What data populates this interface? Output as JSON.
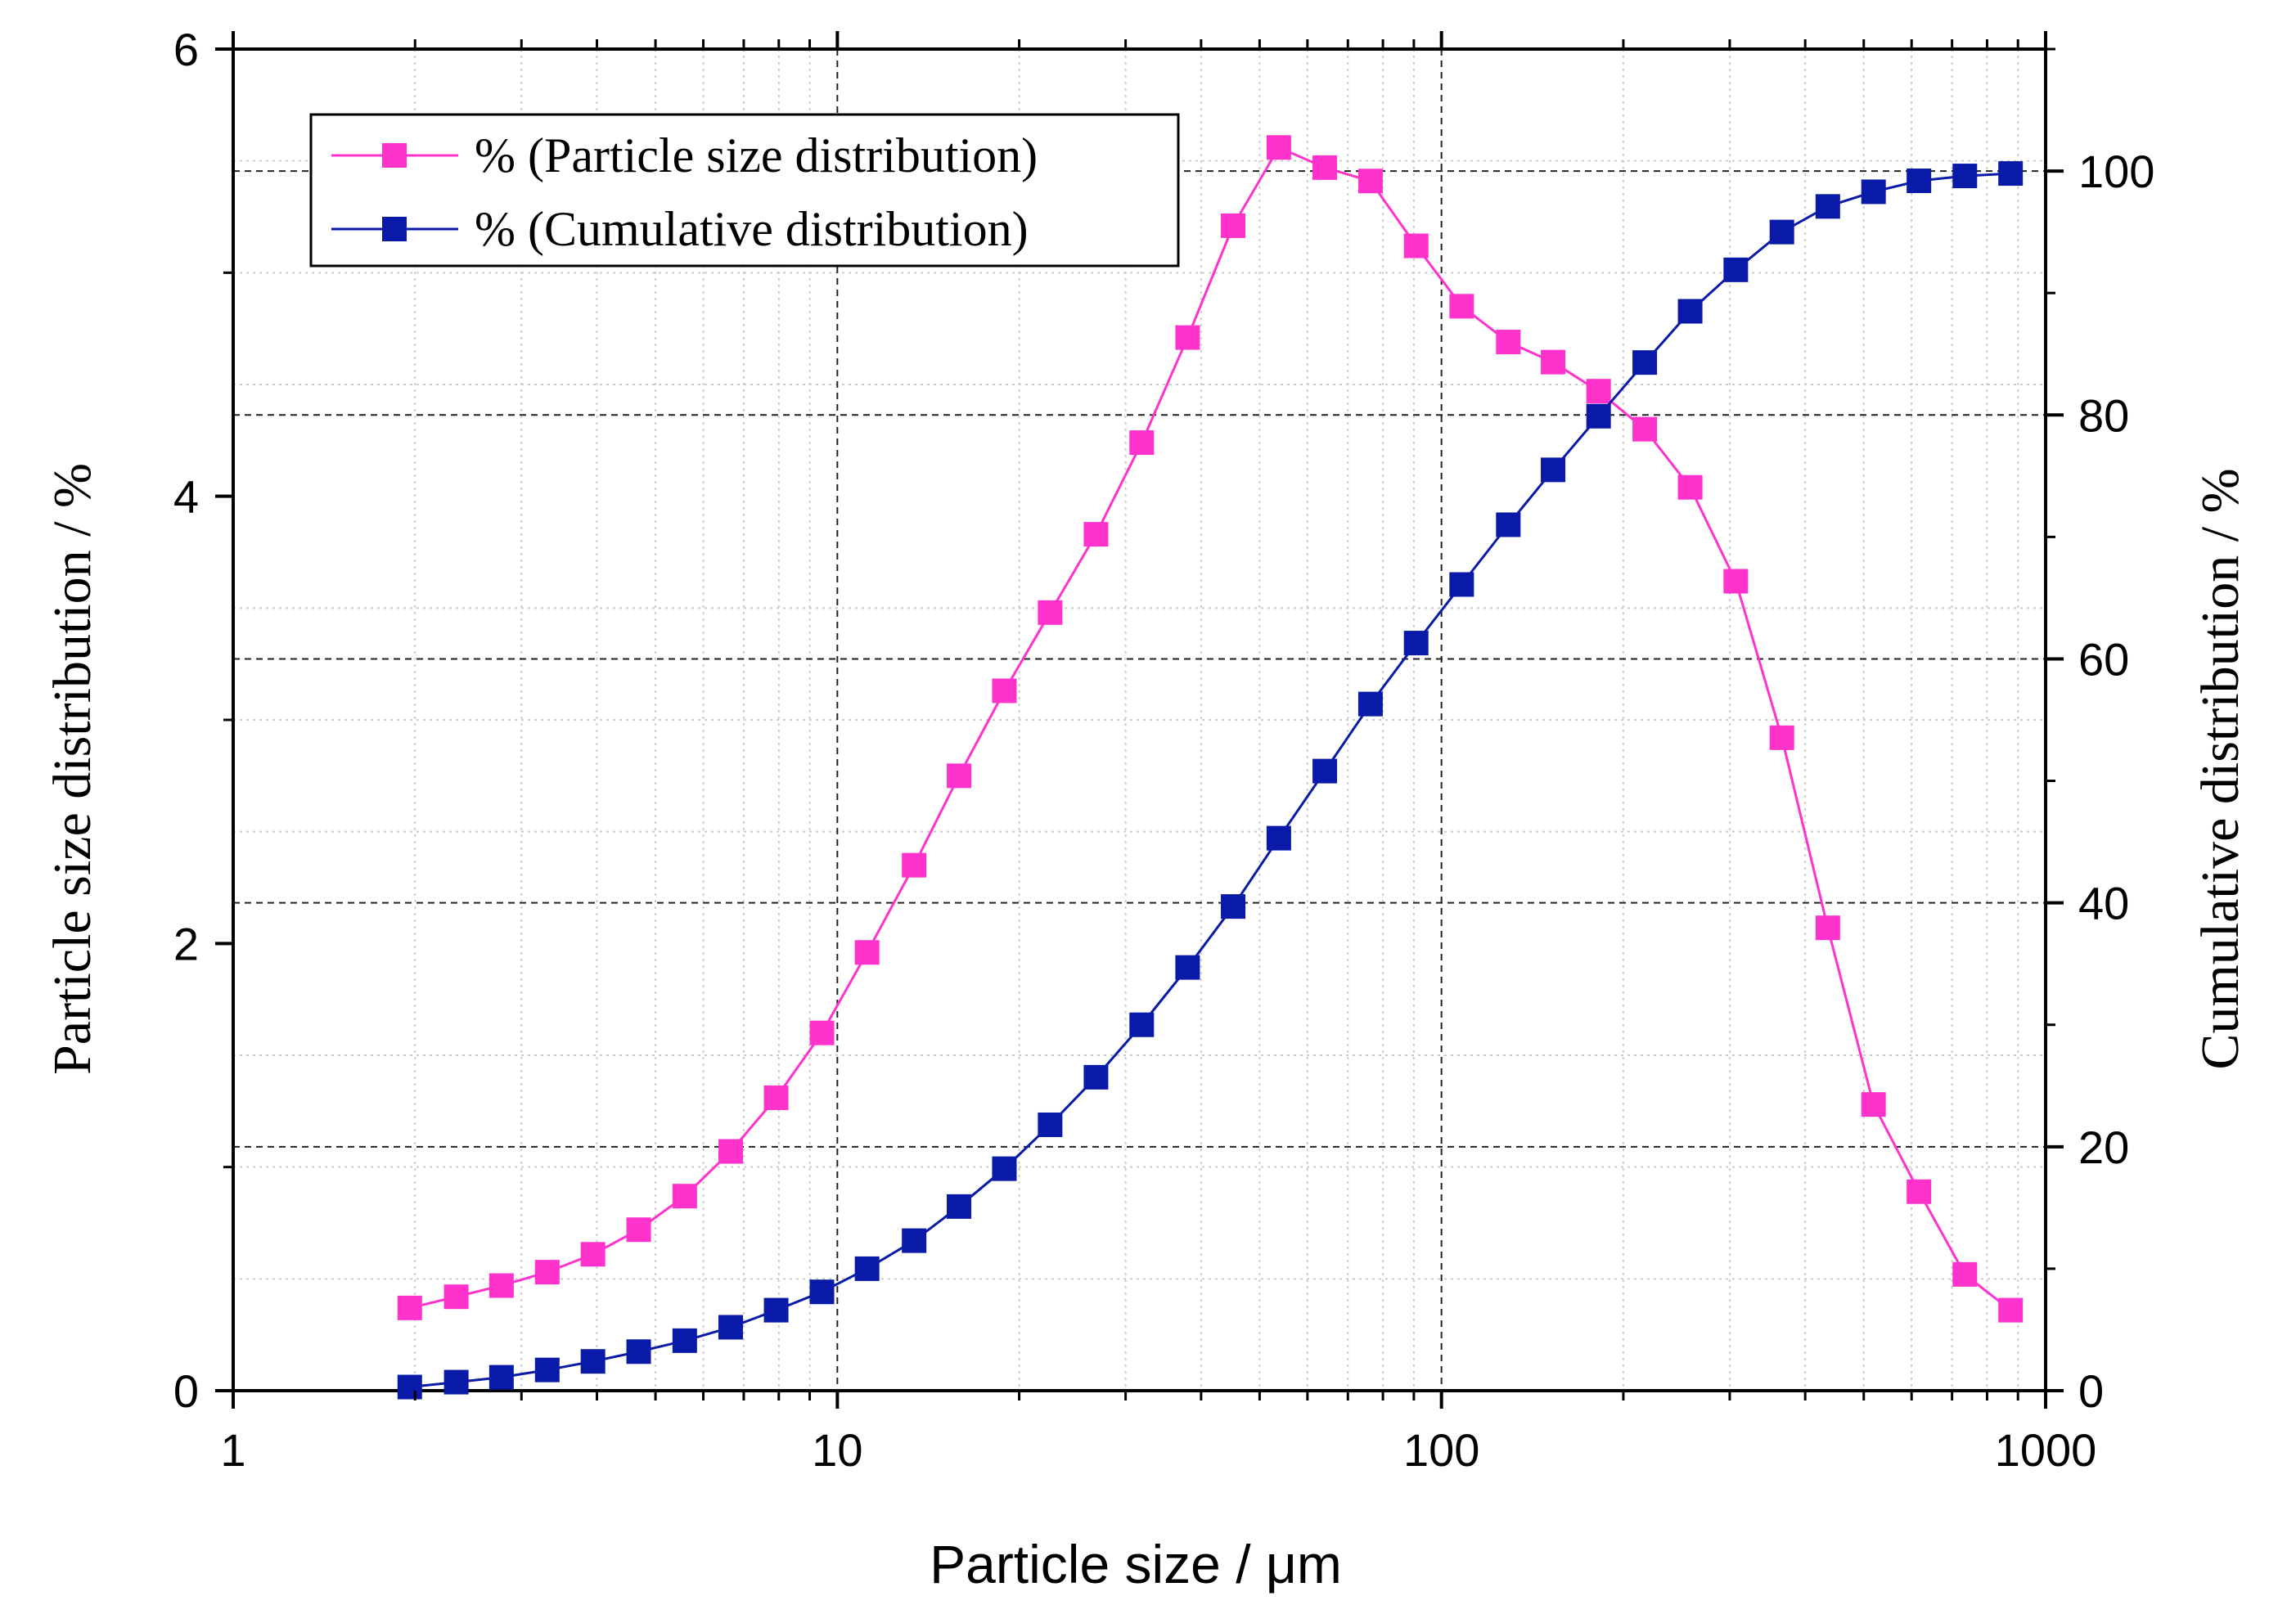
{
  "chart_data": {
    "type": "line",
    "x_scale": "log",
    "xlabel": "Particle size / μm",
    "ylabel_left": "Particle size distribution / %",
    "ylabel_right": "Cumulative distribution / %",
    "xlim": [
      1,
      1000
    ],
    "ylim_left": [
      0,
      6
    ],
    "ylim_right": [
      0,
      110
    ],
    "x_ticks": [
      1,
      10,
      100,
      1000
    ],
    "x_tick_labels": [
      "1",
      "10",
      "100",
      "1000"
    ],
    "y_left_ticks": [
      0,
      2,
      4,
      6
    ],
    "y_left_tick_labels": [
      "0",
      "2",
      "4",
      "6"
    ],
    "y_right_ticks": [
      0,
      20,
      40,
      60,
      80,
      100
    ],
    "y_right_tick_labels": [
      "0",
      "20",
      "40",
      "60",
      "80",
      "100"
    ],
    "grid": true,
    "legend_position": "top-left",
    "x": [
      1.96,
      2.34,
      2.78,
      3.31,
      3.94,
      4.69,
      5.59,
      6.66,
      7.92,
      9.43,
      11.2,
      13.4,
      15.9,
      18.9,
      22.5,
      26.8,
      31.9,
      38.0,
      45.2,
      53.8,
      64.1,
      76.3,
      90.8,
      108,
      129,
      153,
      182,
      217,
      258,
      307,
      366,
      436,
      519,
      617,
      735,
      875
    ],
    "series": [
      {
        "name": "% (Particle size distribution)",
        "axis": "left",
        "color": "#ff33cc",
        "marker": "square",
        "values": [
          0.37,
          0.42,
          0.47,
          0.53,
          0.61,
          0.72,
          0.87,
          1.07,
          1.31,
          1.6,
          1.96,
          2.35,
          2.75,
          3.13,
          3.48,
          3.83,
          4.24,
          4.71,
          5.21,
          5.56,
          5.47,
          5.41,
          5.12,
          4.85,
          4.69,
          4.6,
          4.47,
          4.3,
          4.04,
          3.62,
          2.92,
          2.07,
          1.28,
          0.89,
          0.52,
          0.36
        ]
      },
      {
        "name": "% (Cumulative distribution)",
        "axis": "right",
        "color": "#0a1aa8",
        "marker": "square",
        "values": [
          0.3,
          0.7,
          1.1,
          1.7,
          2.4,
          3.2,
          4.1,
          5.2,
          6.6,
          8.1,
          10.0,
          12.3,
          15.1,
          18.2,
          21.8,
          25.7,
          30.0,
          34.7,
          39.7,
          45.3,
          50.8,
          56.3,
          61.3,
          66.1,
          71.0,
          75.5,
          79.9,
          84.3,
          88.5,
          91.9,
          95.0,
          97.1,
          98.3,
          99.2,
          99.6,
          99.8
        ]
      }
    ]
  }
}
